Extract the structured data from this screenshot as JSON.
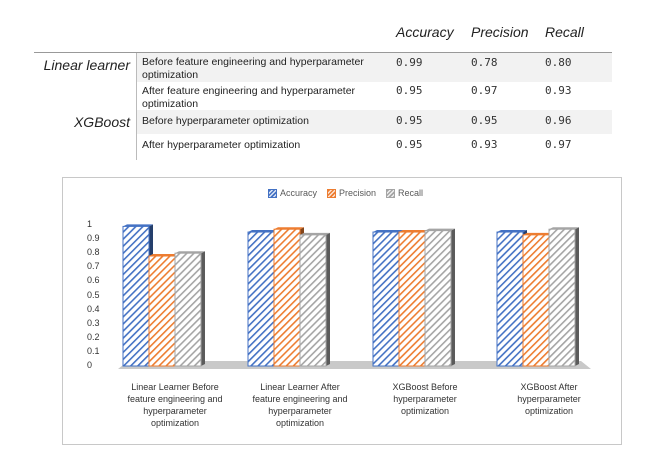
{
  "table": {
    "columns": [
      "Accuracy",
      "Precision",
      "Recall"
    ],
    "groups": [
      {
        "model": "Linear learner",
        "rows": [
          {
            "condition": "Before feature engineering and hyperparameter optimization",
            "values": [
              "0.99",
              "0.78",
              "0.80"
            ]
          },
          {
            "condition": "After feature engineering and hyperparameter optimization",
            "values": [
              "0.95",
              "0.97",
              "0.93"
            ]
          }
        ]
      },
      {
        "model": "XGBoost",
        "rows": [
          {
            "condition": "Before hyperparameter optimization",
            "values": [
              "0.95",
              "0.95",
              "0.96"
            ]
          },
          {
            "condition": "After hyperparameter optimization",
            "values": [
              "0.95",
              "0.93",
              "0.97"
            ]
          }
        ]
      }
    ]
  },
  "chart_data": {
    "type": "bar",
    "title": "",
    "xlabel": "",
    "ylabel": "",
    "ylim": [
      0,
      1
    ],
    "yticks": [
      "0",
      "0.1",
      "0.2",
      "0.3",
      "0.4",
      "0.5",
      "0.6",
      "0.7",
      "0.8",
      "0.9",
      "1"
    ],
    "legend_position": "top",
    "grid": false,
    "categories": [
      "Linear Learner Before feature engineering and hyperparameter optimization",
      "Linear Learner After feature engineering and hyperparameter optimization",
      "XGBoost Before hyperparameter optimization",
      "XGBoost After hyperparameter optimization"
    ],
    "category_lines": [
      [
        "Linear Learner Before",
        "feature engineering and",
        "hyperparameter",
        "optimization"
      ],
      [
        "Linear Learner After",
        "feature engineering and",
        "hyperparameter",
        "optimization"
      ],
      [
        "XGBoost Before",
        "hyperparameter",
        "optimization"
      ],
      [
        "XGBoost After",
        "hyperparameter",
        "optimization"
      ]
    ],
    "series": [
      {
        "name": "Accuracy",
        "color": "#4472c4",
        "values": [
          0.99,
          0.95,
          0.95,
          0.95
        ]
      },
      {
        "name": "Precision",
        "color": "#ed7d31",
        "values": [
          0.78,
          0.97,
          0.95,
          0.93
        ]
      },
      {
        "name": "Recall",
        "color": "#a5a5a5",
        "values": [
          0.8,
          0.93,
          0.96,
          0.97
        ]
      }
    ]
  }
}
